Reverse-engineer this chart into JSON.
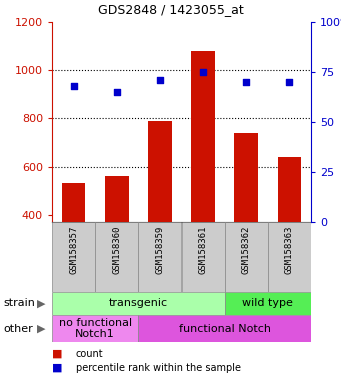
{
  "title": "GDS2848 / 1423055_at",
  "samples": [
    "GSM158357",
    "GSM158360",
    "GSM158359",
    "GSM158361",
    "GSM158362",
    "GSM158363"
  ],
  "counts": [
    530,
    560,
    790,
    1080,
    740,
    640
  ],
  "percentiles": [
    68,
    65,
    71,
    75,
    70,
    70
  ],
  "ylim_left": [
    370,
    1200
  ],
  "ylim_right": [
    0,
    100
  ],
  "bar_color": "#cc1100",
  "dot_color": "#0000cc",
  "strain_groups": [
    {
      "label": "transgenic",
      "span": [
        0,
        4
      ],
      "color": "#aaffaa"
    },
    {
      "label": "wild type",
      "span": [
        4,
        6
      ],
      "color": "#55ee55"
    }
  ],
  "other_groups": [
    {
      "label": "no functional\nNotch1",
      "span": [
        0,
        2
      ],
      "color": "#ee88ee"
    },
    {
      "label": "functional Notch",
      "span": [
        2,
        6
      ],
      "color": "#dd55dd"
    }
  ],
  "legend_count_label": "count",
  "legend_pct_label": "percentile rank within the sample",
  "left_yticks": [
    400,
    600,
    800,
    1000,
    1200
  ],
  "right_yticks": [
    0,
    25,
    50,
    75,
    100
  ],
  "dotted_lines": [
    600,
    800,
    1000
  ],
  "ylabel_left_color": "#cc1100",
  "ylabel_right_color": "#0000cc",
  "label_bg_color": "#cccccc",
  "fig_width": 3.41,
  "fig_height": 3.84,
  "dpi": 100
}
